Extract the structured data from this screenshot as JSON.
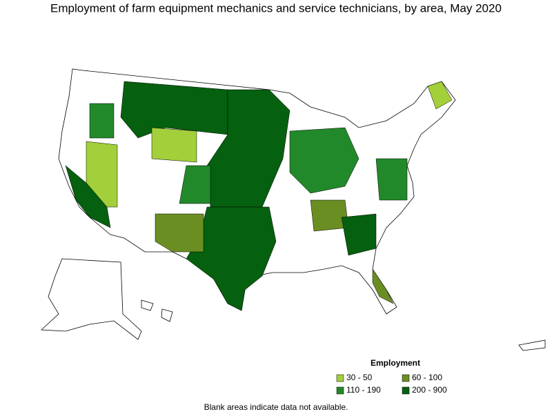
{
  "title": "Employment of farm equipment mechanics and service technicians, by area, May 2020",
  "legend": {
    "title": "Employment",
    "items": [
      {
        "label": "30 - 50",
        "color": "#a3cf3a"
      },
      {
        "label": "60 - 100",
        "color": "#6b8e23"
      },
      {
        "label": "110 - 190",
        "color": "#22892a"
      },
      {
        "label": "200 - 900",
        "color": "#05600f"
      }
    ]
  },
  "footnote": "Blank areas indicate data not available."
}
